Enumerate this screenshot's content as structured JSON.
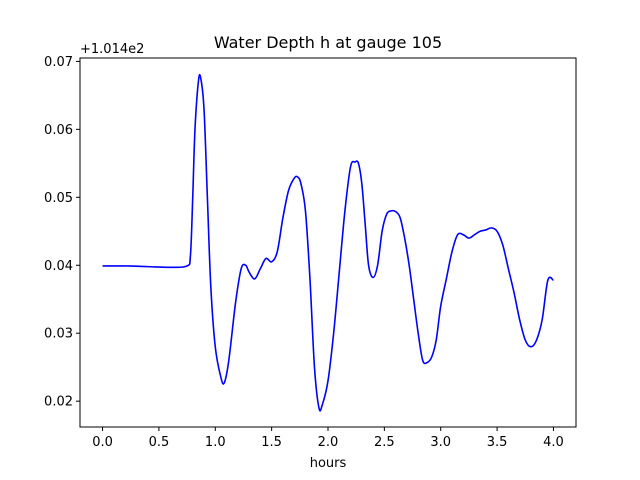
{
  "chart_data": {
    "type": "line",
    "title": "Water Depth h at gauge 105",
    "xlabel": "hours",
    "ylabel": "",
    "offset_label": "+1.014e2",
    "xlim": [
      -0.2,
      4.2
    ],
    "ylim": [
      0.0162,
      0.0705
    ],
    "xticks": [
      0.0,
      0.5,
      1.0,
      1.5,
      2.0,
      2.5,
      3.0,
      3.5,
      4.0
    ],
    "xtick_labels": [
      "0.0",
      "0.5",
      "1.0",
      "1.5",
      "2.0",
      "2.5",
      "3.0",
      "3.5",
      "4.0"
    ],
    "yticks": [
      0.02,
      0.03,
      0.04,
      0.05,
      0.06,
      0.07
    ],
    "ytick_labels": [
      "0.02",
      "0.03",
      "0.04",
      "0.05",
      "0.06",
      "0.07"
    ],
    "grid": false,
    "series": [
      {
        "color": "#0000ff",
        "x": [
          0.0,
          0.2,
          0.4,
          0.6,
          0.75,
          0.78,
          0.8,
          0.82,
          0.85,
          0.87,
          0.9,
          0.93,
          0.96,
          1.0,
          1.05,
          1.08,
          1.12,
          1.18,
          1.23,
          1.27,
          1.3,
          1.35,
          1.4,
          1.45,
          1.5,
          1.55,
          1.6,
          1.65,
          1.7,
          1.73,
          1.76,
          1.8,
          1.84,
          1.88,
          1.92,
          1.95,
          2.0,
          2.05,
          2.1,
          2.15,
          2.2,
          2.24,
          2.27,
          2.3,
          2.33,
          2.36,
          2.4,
          2.44,
          2.48,
          2.52,
          2.56,
          2.6,
          2.64,
          2.68,
          2.72,
          2.76,
          2.8,
          2.84,
          2.88,
          2.92,
          2.96,
          3.0,
          3.05,
          3.1,
          3.15,
          3.2,
          3.25,
          3.3,
          3.35,
          3.4,
          3.45,
          3.5,
          3.55,
          3.6,
          3.65,
          3.7,
          3.75,
          3.8,
          3.85,
          3.9,
          3.95,
          4.0
        ],
        "y": [
          0.0399,
          0.0399,
          0.0398,
          0.0397,
          0.0399,
          0.0415,
          0.05,
          0.06,
          0.067,
          0.0676,
          0.063,
          0.05,
          0.037,
          0.028,
          0.0235,
          0.0227,
          0.026,
          0.0345,
          0.0395,
          0.04,
          0.039,
          0.038,
          0.0395,
          0.041,
          0.0405,
          0.042,
          0.047,
          0.051,
          0.0528,
          0.053,
          0.052,
          0.048,
          0.038,
          0.025,
          0.019,
          0.0195,
          0.023,
          0.03,
          0.039,
          0.048,
          0.0545,
          0.0552,
          0.055,
          0.052,
          0.046,
          0.04,
          0.0382,
          0.04,
          0.045,
          0.0475,
          0.048,
          0.0479,
          0.047,
          0.044,
          0.04,
          0.035,
          0.03,
          0.026,
          0.0257,
          0.0265,
          0.029,
          0.034,
          0.038,
          0.042,
          0.0445,
          0.0445,
          0.044,
          0.0445,
          0.045,
          0.0452,
          0.0455,
          0.045,
          0.043,
          0.0395,
          0.036,
          0.032,
          0.029,
          0.028,
          0.029,
          0.032,
          0.0378,
          0.0378
        ]
      }
    ]
  }
}
